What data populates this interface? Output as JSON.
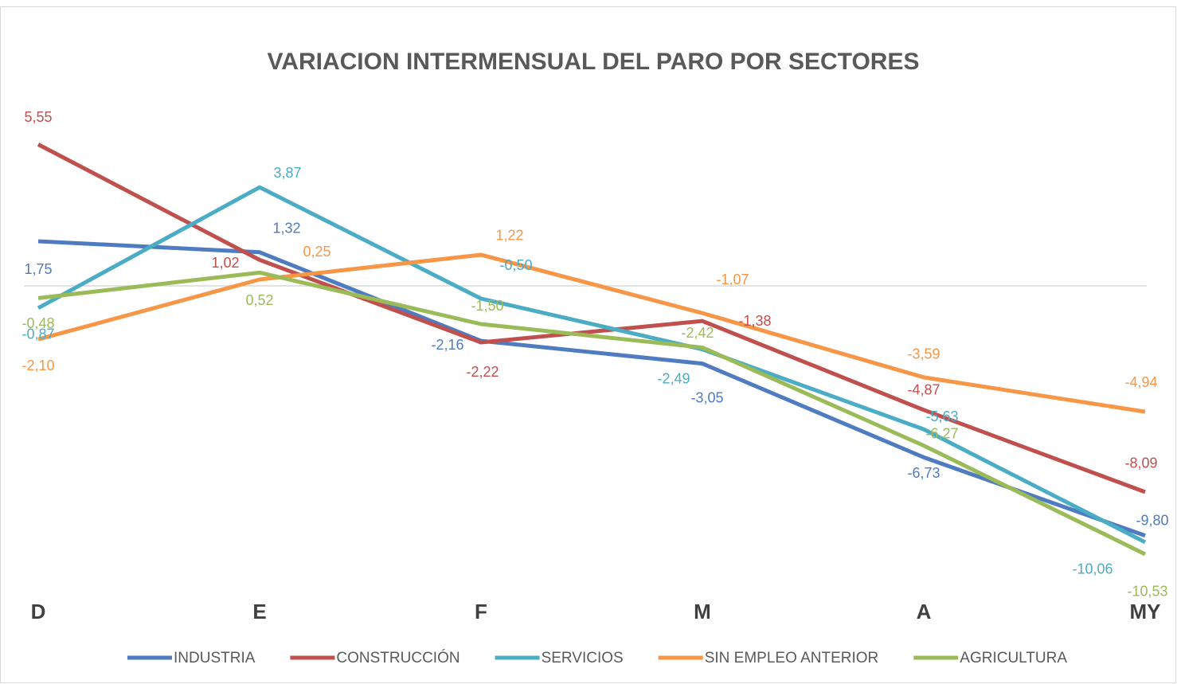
{
  "chart_data": {
    "type": "line",
    "title": "VARIACION INTERMENSUAL DEL PARO POR SECTORES",
    "categories": [
      "D",
      "E",
      "F",
      "M",
      "A",
      "MY"
    ],
    "ylim": [
      -12,
      6
    ],
    "series": [
      {
        "name": "INDUSTRIA",
        "color": "#4f7bc0",
        "values": [
          1.75,
          1.32,
          -2.16,
          -3.05,
          -6.73,
          -9.8
        ],
        "value_labels": [
          "1,75",
          "1,32",
          "-2,16",
          "-3,05",
          "-6,73",
          "-9,80"
        ]
      },
      {
        "name": "CONSTRUCCIÓN",
        "color": "#c0504d",
        "values": [
          5.55,
          1.02,
          -2.22,
          -1.38,
          -4.87,
          -8.09
        ],
        "value_labels": [
          "5,55",
          "1,02",
          "-2,22",
          "-1,38",
          "-4,87",
          "-8,09"
        ]
      },
      {
        "name": "SERVICIOS",
        "color": "#4bacc6",
        "values": [
          -0.87,
          3.87,
          -0.5,
          -2.49,
          -5.63,
          -10.06
        ],
        "value_labels": [
          "-0,87",
          "3,87",
          "-0,50",
          "-2,49",
          "-5,63",
          "-10,06"
        ]
      },
      {
        "name": "SIN EMPLEO ANTERIOR",
        "color": "#f79646",
        "values": [
          -2.1,
          0.25,
          1.22,
          -1.07,
          -3.59,
          -4.94
        ],
        "value_labels": [
          "-2,10",
          "0,25",
          "1,22",
          "-1,07",
          "-3,59",
          "-4,94"
        ]
      },
      {
        "name": "AGRICULTURA",
        "color": "#9bbb59",
        "values": [
          -0.48,
          0.52,
          -1.5,
          -2.42,
          -6.27,
          -10.53
        ],
        "value_labels": [
          "-0,48",
          "0,52",
          "-1,50",
          "-2,42",
          "-6,27",
          "-10,53"
        ]
      }
    ]
  }
}
